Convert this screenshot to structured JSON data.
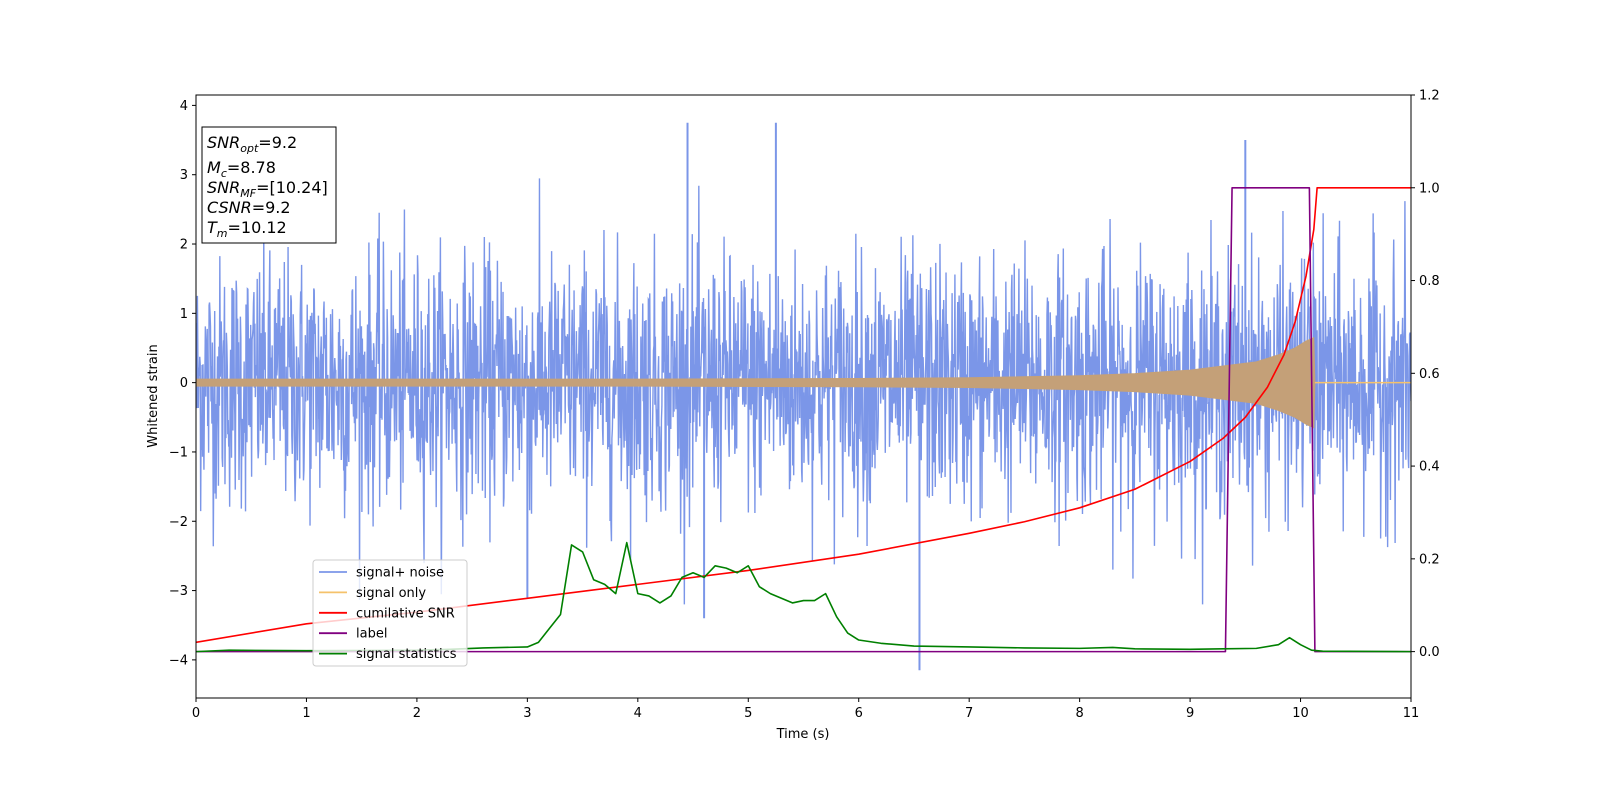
{
  "chart_data": {
    "type": "line",
    "title": "",
    "xlabel": "Time (s)",
    "ylabel_left": "Whitened strain",
    "ylabel_right": "",
    "xlim": [
      0,
      11
    ],
    "ylim_left": [
      -4.55,
      4.15
    ],
    "ylim_right": [
      -0.1,
      1.2
    ],
    "x_ticks": [
      "0",
      "1",
      "2",
      "3",
      "4",
      "5",
      "6",
      "7",
      "8",
      "9",
      "10",
      "11"
    ],
    "y_left_ticks": [
      "4",
      "3",
      "2",
      "1",
      "0",
      "−1",
      "−2",
      "−3",
      "−4"
    ],
    "y_right_ticks": [
      "1.2",
      "1.0",
      "0.8",
      "0.6",
      "0.4",
      "0.2",
      "0.0"
    ],
    "grid": false,
    "legend_position": "lower-left",
    "annotation": {
      "line1_base": "SNR",
      "line1_sub": "opt",
      "line1_value": "=9.2",
      "line2_base": "M",
      "line2_sub": "c",
      "line2_value": "=8.78",
      "line3_base": "SNR",
      "line3_sub": "MF",
      "line3_value": "=[10.24]",
      "line4_base": "CSNR",
      "line4_value": "=9.2",
      "line5_base": "T",
      "line5_sub": "m",
      "line5_value": "=10.12"
    },
    "series": [
      {
        "name": "signal+ noise",
        "axis": "left",
        "color": "#7b96e8",
        "description_kind": "noise",
        "std": 0.9,
        "peaks_x": [
          4.45,
          4.6,
          5.25,
          9.5,
          3.0,
          6.55
        ],
        "peaks_y": [
          3.75,
          -3.4,
          3.75,
          3.5,
          -3.1,
          -4.15
        ]
      },
      {
        "name": "signal only",
        "axis": "left",
        "color": "#f5c26b",
        "fill_color": "#c4a078",
        "x": [
          0,
          2,
          4,
          6,
          7,
          8,
          8.5,
          9,
          9.3,
          9.6,
          9.8,
          9.95,
          10.05,
          10.12,
          10.13,
          11
        ],
        "y_amplitude": [
          0.05,
          0.05,
          0.05,
          0.06,
          0.07,
          0.1,
          0.13,
          0.18,
          0.24,
          0.3,
          0.4,
          0.5,
          0.6,
          0.65,
          0,
          0
        ]
      },
      {
        "name": "cumilative SNR",
        "axis": "right",
        "color": "#ff0000",
        "x": [
          0,
          1,
          2,
          3,
          4,
          5,
          6,
          7,
          7.5,
          8,
          8.5,
          9,
          9.3,
          9.5,
          9.7,
          9.85,
          9.95,
          10.05,
          10.12,
          10.15,
          11
        ],
        "y": [
          0.02,
          0.06,
          0.085,
          0.115,
          0.145,
          0.175,
          0.21,
          0.255,
          0.28,
          0.31,
          0.35,
          0.41,
          0.46,
          0.505,
          0.57,
          0.64,
          0.71,
          0.81,
          0.91,
          1.0,
          1.0
        ]
      },
      {
        "name": "label",
        "axis": "right",
        "color": "#800080",
        "x": [
          0,
          9.32,
          9.38,
          10.08,
          10.13,
          11
        ],
        "y": [
          0,
          0,
          1.0,
          1.0,
          0,
          0
        ]
      },
      {
        "name": "signal statistics",
        "axis": "right",
        "color": "#008000",
        "x": [
          0,
          0.3,
          1.0,
          2.0,
          2.3,
          2.6,
          3.0,
          3.1,
          3.2,
          3.3,
          3.4,
          3.5,
          3.6,
          3.7,
          3.8,
          3.9,
          4.0,
          4.1,
          4.2,
          4.3,
          4.4,
          4.5,
          4.6,
          4.7,
          4.8,
          4.9,
          5.0,
          5.1,
          5.2,
          5.3,
          5.4,
          5.5,
          5.6,
          5.7,
          5.8,
          5.9,
          6.0,
          6.2,
          6.5,
          7.0,
          7.5,
          8.0,
          8.3,
          8.5,
          9.0,
          9.3,
          9.6,
          9.8,
          9.9,
          10.0,
          10.1,
          10.2,
          11
        ],
        "y": [
          0.0,
          0.003,
          0.002,
          0.003,
          0.005,
          0.008,
          0.01,
          0.02,
          0.05,
          0.08,
          0.23,
          0.215,
          0.155,
          0.145,
          0.125,
          0.235,
          0.125,
          0.12,
          0.105,
          0.12,
          0.16,
          0.17,
          0.16,
          0.185,
          0.18,
          0.17,
          0.185,
          0.14,
          0.125,
          0.115,
          0.105,
          0.11,
          0.11,
          0.125,
          0.075,
          0.04,
          0.025,
          0.018,
          0.012,
          0.01,
          0.008,
          0.007,
          0.009,
          0.006,
          0.005,
          0.006,
          0.007,
          0.015,
          0.03,
          0.015,
          0.003,
          0.001,
          0.0
        ]
      }
    ]
  }
}
